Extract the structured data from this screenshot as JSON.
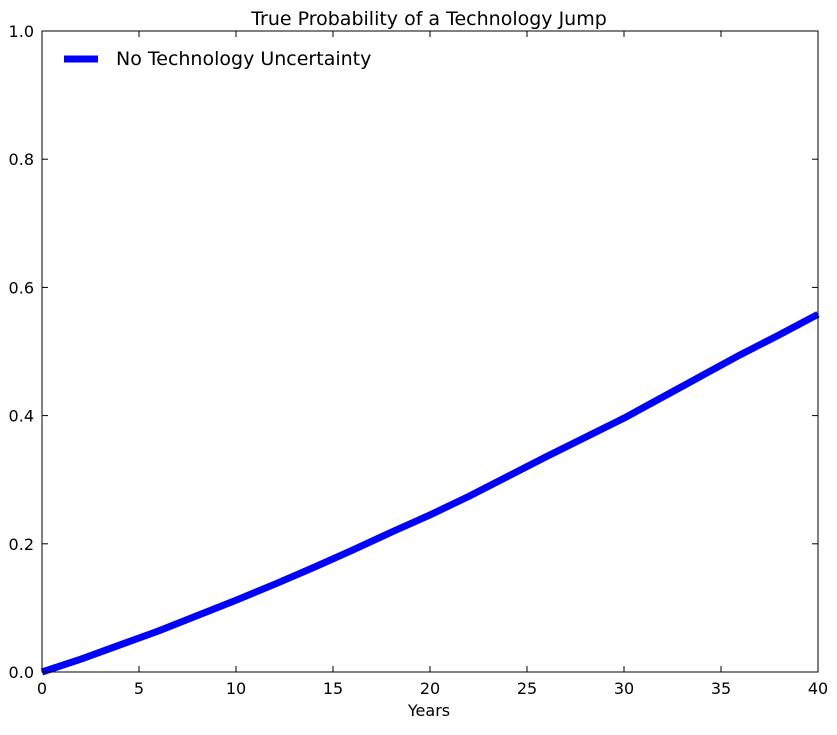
{
  "chart_data": {
    "type": "line",
    "title": "True Probability of a Technology Jump",
    "xlabel": "Years",
    "ylabel": "",
    "xlim": [
      0,
      40
    ],
    "ylim": [
      0.0,
      1.0
    ],
    "xticks": [
      "0",
      "5",
      "10",
      "15",
      "20",
      "25",
      "30",
      "35",
      "40"
    ],
    "yticks": [
      "0.0",
      "0.2",
      "0.4",
      "0.6",
      "0.8",
      "1.0"
    ],
    "grid": false,
    "legend_position": "top-left",
    "series": [
      {
        "name": "No Technology Uncertainty",
        "color": "#0000ff",
        "x": [
          0,
          2,
          4,
          6,
          8,
          10,
          12,
          14,
          16,
          18,
          20,
          22,
          24,
          26,
          28,
          30,
          32,
          34,
          36,
          38,
          40
        ],
        "y": [
          0.0,
          0.02,
          0.042,
          0.064,
          0.088,
          0.112,
          0.137,
          0.163,
          0.19,
          0.218,
          0.245,
          0.274,
          0.305,
          0.336,
          0.366,
          0.396,
          0.429,
          0.462,
          0.495,
          0.526,
          0.558
        ]
      }
    ]
  }
}
